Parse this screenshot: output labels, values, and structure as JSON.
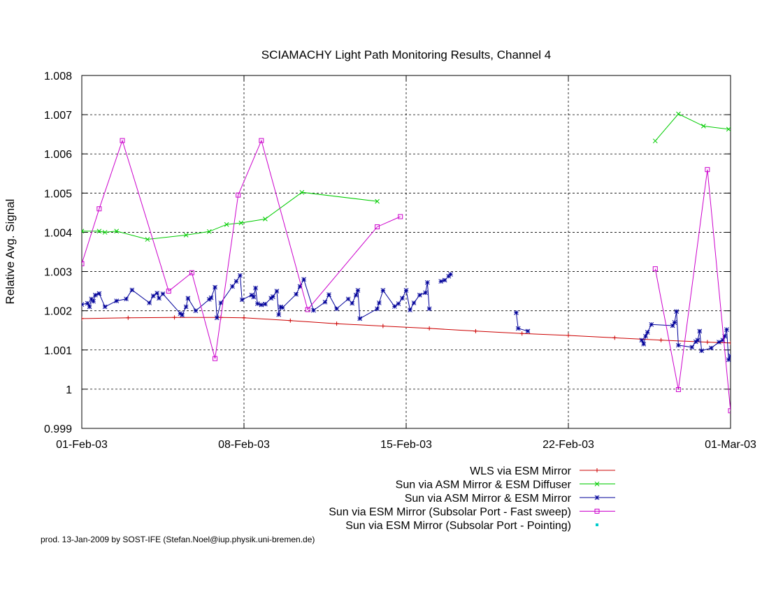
{
  "chart_data": {
    "type": "line",
    "title": "SCIAMACHY Light Path Monitoring Results, Channel 4",
    "ylabel": "Relative Avg. Signal",
    "xlabel": "",
    "xlim": [
      "2003-02-01",
      "2003-03-01"
    ],
    "ylim": [
      0.999,
      1.008
    ],
    "x_ticks": [
      {
        "date": "2003-02-01",
        "label": "01-Feb-03"
      },
      {
        "date": "2003-02-08",
        "label": "08-Feb-03"
      },
      {
        "date": "2003-02-15",
        "label": "15-Feb-03"
      },
      {
        "date": "2003-02-22",
        "label": "22-Feb-03"
      },
      {
        "date": "2003-03-01",
        "label": "01-Mar-03"
      }
    ],
    "y_ticks": [
      {
        "value": 0.999,
        "label": "0.999"
      },
      {
        "value": 1.0,
        "label": "1"
      },
      {
        "value": 1.001,
        "label": "1.001"
      },
      {
        "value": 1.002,
        "label": "1.002"
      },
      {
        "value": 1.003,
        "label": "1.003"
      },
      {
        "value": 1.004,
        "label": "1.004"
      },
      {
        "value": 1.005,
        "label": "1.005"
      },
      {
        "value": 1.006,
        "label": "1.006"
      },
      {
        "value": 1.007,
        "label": "1.007"
      },
      {
        "value": 1.008,
        "label": "1.008"
      }
    ],
    "grid": true,
    "legend_position": "bottom-right",
    "series": [
      {
        "name": "WLS via ESM Mirror",
        "color": "#cc0000",
        "marker": "plus",
        "segments": [
          [
            [
              "2003-02-01T00:00",
              1.0018
            ],
            [
              "2003-02-03T00:00",
              1.00182
            ],
            [
              "2003-02-05T00:00",
              1.00183
            ],
            [
              "2003-02-07T00:00",
              1.00183
            ],
            [
              "2003-02-08T00:00",
              1.00182
            ],
            [
              "2003-02-10T00:00",
              1.00175
            ],
            [
              "2003-02-12T00:00",
              1.00167
            ],
            [
              "2003-02-14T00:00",
              1.00161
            ],
            [
              "2003-02-16T00:00",
              1.00155
            ],
            [
              "2003-02-18T00:00",
              1.00148
            ],
            [
              "2003-02-20T00:00",
              1.00142
            ],
            [
              "2003-02-22T00:00",
              1.00137
            ],
            [
              "2003-02-24T00:00",
              1.00131
            ],
            [
              "2003-02-26T00:00",
              1.00125
            ],
            [
              "2003-02-28T00:00",
              1.0012
            ],
            [
              "2003-03-01T00:00",
              1.00118
            ]
          ]
        ]
      },
      {
        "name": "Sun via ASM Mirror & ESM Diffuser",
        "color": "#00cc00",
        "marker": "cross",
        "segments": [
          [
            [
              "2003-02-01T00:00",
              1.00403
            ],
            [
              "2003-02-01T18:00",
              1.00403
            ],
            [
              "2003-02-02T00:00",
              1.004
            ],
            [
              "2003-02-02T12:00",
              1.00403
            ],
            [
              "2003-02-03T20:00",
              1.00382
            ],
            [
              "2003-02-05T12:00",
              1.00393
            ],
            [
              "2003-02-06T12:00",
              1.00402
            ],
            [
              "2003-02-07T06:00",
              1.0042
            ],
            [
              "2003-02-07T21:00",
              1.00424
            ],
            [
              "2003-02-08T22:00",
              1.00434
            ],
            [
              "2003-02-10T12:00",
              1.00502
            ],
            [
              "2003-02-13T18:00",
              1.00479
            ]
          ],
          [
            [
              "2003-02-25T18:00",
              1.00633
            ],
            [
              "2003-02-26T18:00",
              1.00702
            ],
            [
              "2003-02-27T20:00",
              1.00671
            ],
            [
              "2003-02-28T22:00",
              1.00663
            ]
          ]
        ]
      },
      {
        "name": "Sun via ASM Mirror & ESM Mirror",
        "color": "#000099",
        "marker": "star",
        "segments": [
          [
            [
              "2003-02-01T00:00",
              1.00216
            ],
            [
              "2003-02-01T06:00",
              1.00219
            ],
            [
              "2003-02-01T08:00",
              1.0021
            ],
            [
              "2003-02-01T10:00",
              1.0023
            ],
            [
              "2003-02-01T12:00",
              1.00224
            ],
            [
              "2003-02-01T14:00",
              1.0024
            ],
            [
              "2003-02-01T18:00",
              1.00244
            ],
            [
              "2003-02-02T00:00",
              1.0021
            ],
            [
              "2003-02-02T12:00",
              1.00225
            ],
            [
              "2003-02-02T22:00",
              1.0023
            ],
            [
              "2003-02-03T04:00",
              1.00253
            ],
            [
              "2003-02-03T22:00",
              1.0022
            ],
            [
              "2003-02-04T02:00",
              1.00238
            ],
            [
              "2003-02-04T06:00",
              1.00245
            ],
            [
              "2003-02-04T08:00",
              1.00232
            ],
            [
              "2003-02-04T12:00",
              1.00243
            ],
            [
              "2003-02-05T06:00",
              1.00193
            ],
            [
              "2003-02-05T08:00",
              1.00189
            ],
            [
              "2003-02-05T12:00",
              1.0021
            ],
            [
              "2003-02-05T14:00",
              1.00232
            ],
            [
              "2003-02-05T22:00",
              1.002
            ],
            [
              "2003-02-06T12:00",
              1.00229
            ],
            [
              "2003-02-06T14:00",
              1.00233
            ],
            [
              "2003-02-06T18:00",
              1.0026
            ],
            [
              "2003-02-06T20:00",
              1.00182
            ],
            [
              "2003-02-07T00:00",
              1.0022
            ],
            [
              "2003-02-07T12:00",
              1.00262
            ],
            [
              "2003-02-07T16:00",
              1.00275
            ],
            [
              "2003-02-07T20:00",
              1.0029
            ],
            [
              "2003-02-07T22:00",
              1.00228
            ],
            [
              "2003-02-08T08:00",
              1.0024
            ],
            [
              "2003-02-08T10:00",
              1.00235
            ],
            [
              "2003-02-08T12:00",
              1.00258
            ],
            [
              "2003-02-08T14:00",
              1.00218
            ],
            [
              "2003-02-08T18:00",
              1.00215
            ],
            [
              "2003-02-08T22:00",
              1.00217
            ],
            [
              "2003-02-09T04:00",
              1.00232
            ],
            [
              "2003-02-09T06:00",
              1.00236
            ],
            [
              "2003-02-09T10:00",
              1.0025
            ],
            [
              "2003-02-09T12:00",
              1.0019
            ],
            [
              "2003-02-09T14:00",
              1.0021
            ],
            [
              "2003-02-09T16:00",
              1.00208
            ],
            [
              "2003-02-10T06:00",
              1.00242
            ],
            [
              "2003-02-10T10:00",
              1.00262
            ],
            [
              "2003-02-10T14:00",
              1.0028
            ],
            [
              "2003-02-11T00:00",
              1.00201
            ],
            [
              "2003-02-11T12:00",
              1.00222
            ],
            [
              "2003-02-11T16:00",
              1.00241
            ],
            [
              "2003-02-12T00:00",
              1.00205
            ],
            [
              "2003-02-12T12:00",
              1.0023
            ],
            [
              "2003-02-12T16:00",
              1.00219
            ],
            [
              "2003-02-12T20:00",
              1.0024
            ],
            [
              "2003-02-12T22:00",
              1.00252
            ],
            [
              "2003-02-13T00:00",
              1.0018
            ],
            [
              "2003-02-13T18:00",
              1.00205
            ],
            [
              "2003-02-13T20:00",
              1.0022
            ],
            [
              "2003-02-14T00:00",
              1.00252
            ],
            [
              "2003-02-14T12:00",
              1.00211
            ],
            [
              "2003-02-14T16:00",
              1.00218
            ],
            [
              "2003-02-14T20:00",
              1.00232
            ],
            [
              "2003-02-15T00:00",
              1.00252
            ],
            [
              "2003-02-15T04:00",
              1.00202
            ],
            [
              "2003-02-15T08:00",
              1.0022
            ],
            [
              "2003-02-15T14:00",
              1.0024
            ],
            [
              "2003-02-15T20:00",
              1.00246
            ],
            [
              "2003-02-15T22:00",
              1.00272
            ],
            [
              "2003-02-16T00:00",
              1.00205
            ]
          ],
          [
            [
              "2003-02-16T12:00",
              1.00275
            ],
            [
              "2003-02-16T16:00",
              1.00278
            ],
            [
              "2003-02-16T20:00",
              1.00288
            ],
            [
              "2003-02-16T22:00",
              1.00293
            ]
          ],
          [
            [
              "2003-02-19T18:00",
              1.00195
            ],
            [
              "2003-02-19T20:00",
              1.00155
            ],
            [
              "2003-02-20T06:00",
              1.00148
            ]
          ],
          [
            [
              "2003-02-25T04:00",
              1.00125
            ],
            [
              "2003-02-25T06:00",
              1.00115
            ],
            [
              "2003-02-25T08:00",
              1.00135
            ],
            [
              "2003-02-25T10:00",
              1.00145
            ],
            [
              "2003-02-25T14:00",
              1.00165
            ],
            [
              "2003-02-26T12:00",
              1.00162
            ],
            [
              "2003-02-26T14:00",
              1.0017
            ],
            [
              "2003-02-26T16:00",
              1.00198
            ],
            [
              "2003-02-26T18:00",
              1.00112
            ],
            [
              "2003-02-27T08:00",
              1.00107
            ],
            [
              "2003-02-27T12:00",
              1.00121
            ],
            [
              "2003-02-27T14:00",
              1.00125
            ],
            [
              "2003-02-27T16:00",
              1.00148
            ],
            [
              "2003-02-27T18:00",
              1.00098
            ],
            [
              "2003-02-28T04:00",
              1.00105
            ],
            [
              "2003-02-28T12:00",
              1.0012
            ],
            [
              "2003-02-28T16:00",
              1.00125
            ],
            [
              "2003-02-28T18:00",
              1.00135
            ],
            [
              "2003-02-28T20:00",
              1.00152
            ],
            [
              "2003-02-28T22:00",
              1.00075
            ],
            [
              "2003-03-01T00:00",
              1.00085
            ],
            [
              "2003-03-01T12:00",
              1.00145
            ],
            [
              "2003-03-01T14:00",
              1.0015
            ],
            [
              "2003-03-01T16:00",
              1.0016
            ],
            [
              "2003-03-01T18:00",
              1.00172
            ],
            [
              "2003-03-01T20:00",
              1.00195
            ],
            [
              "2003-03-01T22:00",
              1.0016
            ]
          ]
        ]
      },
      {
        "name": "Sun via ESM Mirror (Subsolar Port - Fast sweep)",
        "color": "#cc00cc",
        "marker": "square",
        "segments": [
          [
            [
              "2003-02-01T00:00",
              1.0032
            ],
            [
              "2003-02-01T18:00",
              1.0046
            ],
            [
              "2003-02-02T18:00",
              1.00634
            ],
            [
              "2003-02-04T18:00",
              1.0025
            ],
            [
              "2003-02-05T18:00",
              1.00297
            ],
            [
              "2003-02-06T18:00",
              1.00078
            ],
            [
              "2003-02-07T18:00",
              1.00495
            ],
            [
              "2003-02-08T18:00",
              1.00634
            ],
            [
              "2003-02-10T18:00",
              1.00203
            ],
            [
              "2003-02-13T18:00",
              1.00414
            ],
            [
              "2003-02-14T18:00",
              1.0044
            ]
          ],
          [
            [
              "2003-02-25T18:00",
              1.00307
            ],
            [
              "2003-02-26T18:00",
              0.99999
            ],
            [
              "2003-02-28T00:00",
              1.0056
            ],
            [
              "2003-03-01T00:00",
              0.99945
            ],
            [
              "2003-03-01T06:00",
              1.00015
            ]
          ]
        ]
      },
      {
        "name": "Sun via ESM Mirror (Subsolar Port - Pointing)",
        "color": "#00cccc",
        "marker": "dot",
        "segments": []
      }
    ]
  },
  "footer": "prod. 13-Jan-2009 by SOST-IFE (Stefan.Noel@iup.physik.uni-bremen.de)"
}
